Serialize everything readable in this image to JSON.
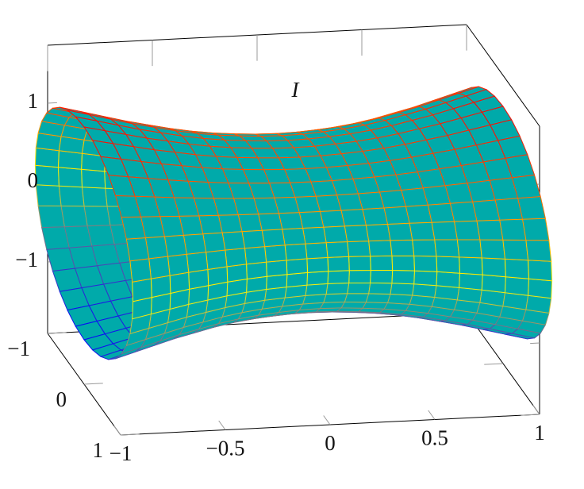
{
  "chart_data": {
    "type": "surface",
    "annotation": "I",
    "annotation_color": "#00a0a0",
    "fill": "#00aaaa",
    "colormap": [
      "#0000ff",
      "#ffff00",
      "#ff0000"
    ],
    "x": [
      -1,
      -0.9,
      -0.8,
      -0.7,
      -0.6,
      -0.5,
      -0.4,
      -0.3,
      -0.2,
      -0.1,
      0,
      0.1,
      0.2,
      0.3,
      0.4,
      0.5,
      0.6,
      0.7,
      0.8,
      0.9,
      1
    ],
    "radius": [
      1.34,
      1.28,
      1.22,
      1.16,
      1.11,
      1.06,
      1.02,
      0.99,
      0.97,
      0.955,
      0.95,
      0.955,
      0.97,
      0.99,
      1.02,
      1.06,
      1.11,
      1.16,
      1.22,
      1.28,
      1.34
    ],
    "theta": [
      0,
      10,
      20,
      30,
      40,
      50,
      60,
      70,
      80,
      90,
      100,
      110,
      120,
      130,
      140,
      150,
      160,
      170,
      180,
      190,
      200,
      210,
      220,
      230,
      240,
      250,
      260,
      270,
      280,
      290,
      300,
      310,
      320,
      330,
      340,
      350,
      360
    ],
    "xlim": [
      -1,
      1
    ],
    "ylim": [
      -1,
      1
    ],
    "zlim": [
      -1.9,
      1.73
    ],
    "xticks": [
      {
        "value": -1,
        "label": "−1"
      },
      {
        "value": -0.5,
        "label": "−0.5"
      },
      0,
      0.5,
      1
    ],
    "yticks": [
      {
        "value": -1,
        "label": "−1"
      },
      0,
      1
    ],
    "zticks": [
      {
        "value": -1,
        "label": "−1"
      },
      0,
      1
    ]
  }
}
